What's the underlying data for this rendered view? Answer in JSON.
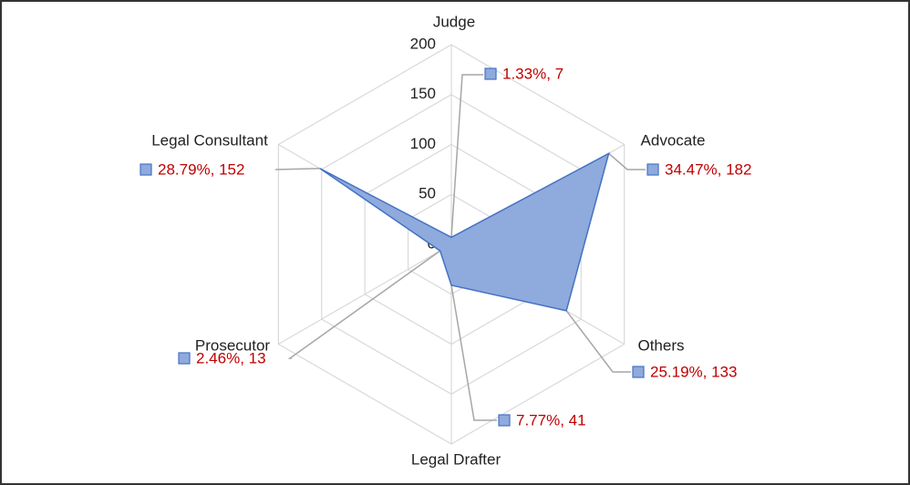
{
  "chart_data": {
    "type": "radar",
    "categories": [
      "Judge",
      "Advocate",
      "Others",
      "Legal Drafter",
      "Prosecutor",
      "Legal Consultant"
    ],
    "values": [
      7,
      182,
      133,
      41,
      13,
      152
    ],
    "value_labels": [
      "1.33%, 7",
      "34.47%, 182",
      "25.19%, 133",
      "7.77%, 41",
      "2.46%, 13",
      "28.79%, 152"
    ],
    "color": "#8faadc",
    "ylim": [
      0,
      200
    ],
    "yticks": [
      0,
      50,
      100,
      150,
      200
    ],
    "grid": true
  }
}
